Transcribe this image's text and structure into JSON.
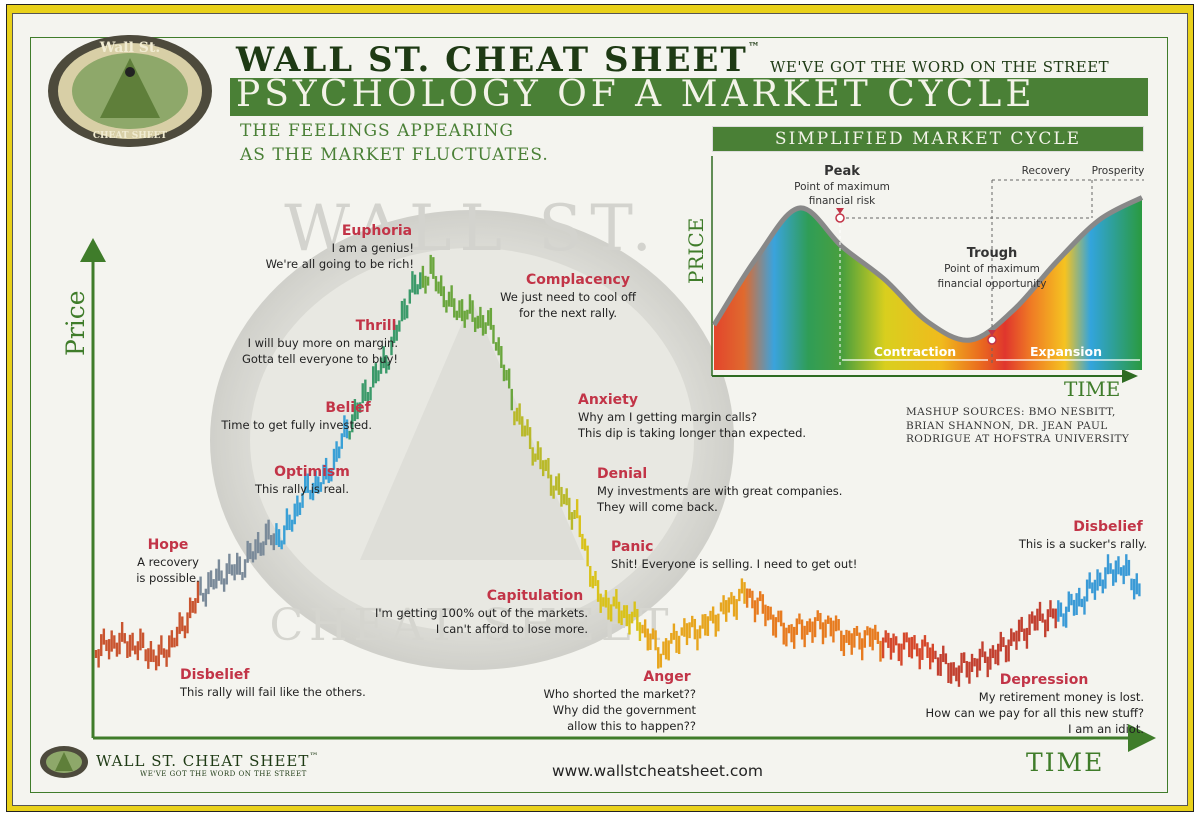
{
  "header": {
    "brand": "Wall St. Cheat Sheet",
    "trademark": "™",
    "slogan": "We've Got the Word on the Street",
    "title": "Psychology of a Market Cycle",
    "subtitle_line1": "The feelings appearing",
    "subtitle_line2": "as the market fluctuates."
  },
  "logo": {
    "top_text": "Wall St.",
    "bottom_text": "Cheat Sheet"
  },
  "colors": {
    "brand_green": "#4a8036",
    "stage_red": "#c23447",
    "frame_yellow": "#e9d11a",
    "trend": [
      "#c9542f",
      "#7a8a99",
      "#3aa0d6",
      "#3b9a6a",
      "#6aa63d",
      "#b9b92a",
      "#d9c21a",
      "#e7a51d",
      "#e77b1f",
      "#d5472a",
      "#c24030",
      "#3a9ad6",
      "#2e9c55"
    ]
  },
  "chart_data": [
    {
      "type": "line",
      "title": "Psychology of a Market Cycle",
      "xlabel": "Time",
      "ylabel": "Price",
      "y_scale_note": "relative price level (unitless)",
      "series": [
        {
          "x": [
            0,
            2,
            4,
            6,
            8,
            10,
            12,
            14,
            16,
            18,
            20,
            22,
            24,
            26,
            28,
            30,
            32,
            34,
            36,
            38,
            40,
            42,
            44,
            46,
            48,
            50,
            52,
            54,
            56,
            58,
            60,
            62,
            64,
            66,
            68,
            70,
            72,
            74,
            76,
            78,
            80,
            82,
            84,
            86,
            88,
            90,
            92,
            94,
            96,
            98,
            100
          ],
          "y": [
            5,
            7,
            6,
            3,
            9,
            18,
            22,
            24,
            30,
            31,
            41,
            44,
            55,
            64,
            72,
            86,
            91,
            83,
            81,
            78,
            60,
            50,
            42,
            35,
            17,
            14,
            11,
            4,
            9,
            10,
            14,
            18,
            14,
            9,
            10,
            11,
            7,
            8,
            6,
            6,
            4,
            0,
            2,
            4,
            8,
            12,
            13,
            16,
            21,
            24,
            18
          ]
        }
      ],
      "ylim": [
        0,
        100
      ]
    },
    {
      "type": "area",
      "title": "Simplified Market Cycle",
      "xlabel": "Time",
      "ylabel": "Price",
      "series": [
        {
          "x": [
            0,
            10,
            20,
            30,
            40,
            50,
            60,
            70,
            80,
            90,
            100
          ],
          "y": [
            10,
            55,
            88,
            62,
            40,
            12,
            0,
            20,
            52,
            80,
            95
          ]
        }
      ],
      "ylim": [
        0,
        100
      ],
      "annotations": [
        {
          "label": "Peak",
          "detail": "Point of maximum financial risk"
        },
        {
          "label": "Trough",
          "detail": "Point of maximum financial opportunity"
        },
        {
          "label": "Recovery"
        },
        {
          "label": "Prosperity"
        },
        {
          "label": "Contraction"
        },
        {
          "label": "Expansion"
        }
      ]
    }
  ],
  "stages": [
    {
      "name": "Disbelief",
      "quote": [
        "This rally will fail like the others."
      ]
    },
    {
      "name": "Hope",
      "quote": [
        "A recovery",
        "is possible."
      ]
    },
    {
      "name": "Optimism",
      "quote": [
        "This rally is real."
      ]
    },
    {
      "name": "Belief",
      "quote": [
        "Time to get fully invested."
      ]
    },
    {
      "name": "Thrill",
      "quote": [
        "I will buy more on margin.",
        "Gotta tell everyone to buy!"
      ]
    },
    {
      "name": "Euphoria",
      "quote": [
        "I am a genius!",
        "We're all going to be rich!"
      ]
    },
    {
      "name": "Complacency",
      "quote": [
        "We just need to cool off",
        "for the next rally."
      ]
    },
    {
      "name": "Anxiety",
      "quote": [
        "Why am I getting margin calls?",
        "This dip is taking longer than expected."
      ]
    },
    {
      "name": "Denial",
      "quote": [
        "My investments are with great companies.",
        "They will come back."
      ]
    },
    {
      "name": "Panic",
      "quote": [
        "Shit! Everyone is selling. I need to get out!"
      ]
    },
    {
      "name": "Capitulation",
      "quote": [
        "I'm getting 100% out of the markets.",
        "I can't afford to lose more."
      ]
    },
    {
      "name": "Anger",
      "quote": [
        "Who shorted the market??",
        "Why did the government",
        "allow this to happen??"
      ]
    },
    {
      "name": "Depression",
      "quote": [
        "My retirement money is lost.",
        "How can we pay for all this new stuff?",
        "I am an idiot."
      ]
    },
    {
      "name": "Disbelief",
      "quote": [
        "This is a sucker's rally."
      ]
    }
  ],
  "sources": {
    "line1": "Mashup Sources: BMO Nesbitt,",
    "line2": "Brian Shannon, Dr. Jean Paul",
    "line3": "Rodrigue at Hofstra University"
  },
  "footer": {
    "brand": "Wall St. Cheat Sheet",
    "trademark": "™",
    "slogan": "We've Got the Word on the Street",
    "url": "www.wallstcheatsheet.com"
  }
}
